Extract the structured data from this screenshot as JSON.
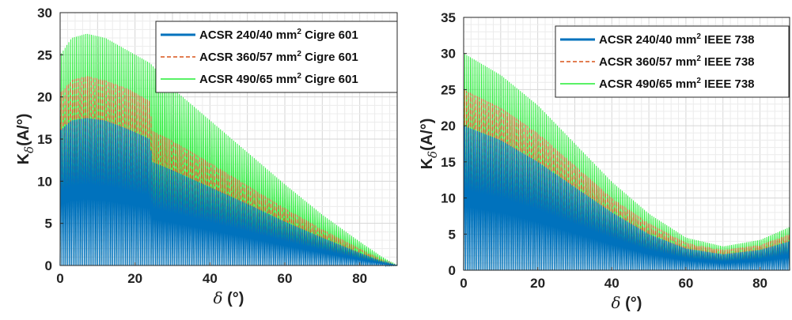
{
  "chart_data": [
    {
      "type": "line",
      "xlabel": "δ (°)",
      "ylabel": "Kδ(A/°)",
      "xlim": [
        0,
        90
      ],
      "ylim": [
        0,
        30
      ],
      "xticks": [
        0,
        20,
        40,
        60,
        80
      ],
      "yticks": [
        0,
        5,
        10,
        15,
        20,
        25,
        30
      ],
      "grid": true,
      "legend_position": "top-right",
      "series": [
        {
          "name": "ACSR 240/40 mm² Cigre 601",
          "color": "#0072BD",
          "style": "solid",
          "envelope": {
            "x": [
              0,
              3,
              7,
              12,
              18,
              24,
              24.5,
              30,
              40,
              50,
              60,
              70,
              80,
              86,
              90
            ],
            "y": [
              16.0,
              17.2,
              17.5,
              17.2,
              16.2,
              15.0,
              12.3,
              11.3,
              9.3,
              7.3,
              5.2,
              3.3,
              1.5,
              0.5,
              0.0
            ]
          }
        },
        {
          "name": "ACSR 360/57 mm² Cigre 601",
          "color": "#D95319",
          "style": "dashed",
          "envelope": {
            "x": [
              0,
              3,
              7,
              12,
              18,
              24,
              24.5,
              30,
              40,
              50,
              60,
              70,
              80,
              86,
              90
            ],
            "y": [
              20.5,
              22.0,
              22.5,
              22.0,
              21.0,
              19.5,
              16.0,
              14.8,
              12.2,
              9.5,
              6.8,
              4.3,
              2.0,
              0.7,
              0.0
            ]
          }
        },
        {
          "name": "ACSR 490/65 mm² Cigre 601",
          "color": "#22EE33",
          "style": "solid",
          "envelope": {
            "x": [
              0,
              3,
              7,
              12,
              18,
              24,
              30,
              40,
              50,
              60,
              70,
              80,
              86,
              90
            ],
            "y": [
              25.0,
              27.0,
              27.5,
              27.0,
              25.5,
              24.0,
              21.0,
              17.2,
              13.4,
              9.6,
              6.0,
              2.8,
              1.0,
              0.0
            ]
          }
        }
      ]
    },
    {
      "type": "line",
      "xlabel": "δ (°)",
      "ylabel": "Kδ(A/°)",
      "xlim": [
        0,
        88
      ],
      "ylim": [
        0,
        35
      ],
      "xticks": [
        0,
        20,
        40,
        60,
        80
      ],
      "yticks": [
        0,
        5,
        10,
        15,
        20,
        25,
        30,
        35
      ],
      "grid": true,
      "legend_position": "top-right",
      "series": [
        {
          "name": "ACSR 240/40 mm² IEEE 738",
          "color": "#0072BD",
          "style": "solid",
          "envelope": {
            "x": [
              0,
              10,
              20,
              30,
              40,
              50,
              60,
              70,
              80,
              88
            ],
            "y": [
              20.0,
              18.0,
              15.0,
              11.5,
              8.0,
              5.0,
              3.0,
              2.2,
              2.8,
              4.0
            ]
          }
        },
        {
          "name": "ACSR 360/57 mm² IEEE 738",
          "color": "#D95319",
          "style": "dashed",
          "envelope": {
            "x": [
              0,
              10,
              20,
              30,
              40,
              50,
              60,
              70,
              80,
              88
            ],
            "y": [
              25.0,
              22.5,
              19.0,
              14.5,
              10.0,
              6.5,
              3.8,
              2.8,
              3.5,
              5.0
            ]
          }
        },
        {
          "name": "ACSR 490/65 mm² IEEE 738",
          "color": "#22EE33",
          "style": "solid",
          "envelope": {
            "x": [
              0,
              10,
              20,
              30,
              40,
              50,
              60,
              70,
              80,
              88
            ],
            "y": [
              30.0,
              27.0,
              22.8,
              17.5,
              12.2,
              7.8,
              4.5,
              3.3,
              4.2,
              6.0
            ]
          }
        }
      ]
    }
  ]
}
